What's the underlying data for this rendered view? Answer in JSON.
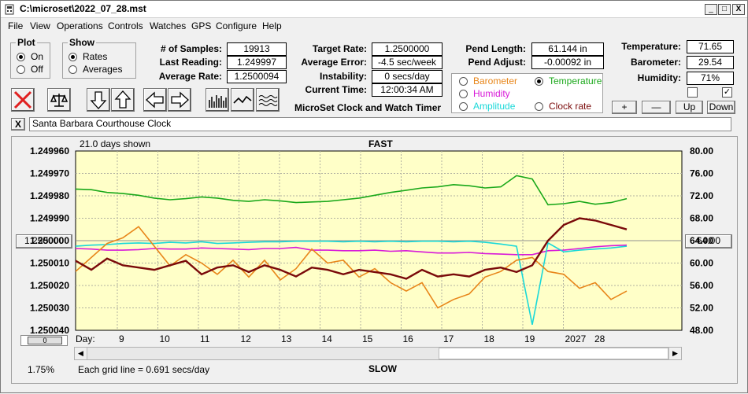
{
  "window": {
    "title": "C:\\microset\\2022_07_28.mst",
    "min_glyph": "_",
    "max_glyph": "□",
    "close_glyph": "X"
  },
  "menu": [
    "File",
    "View",
    "Operations",
    "Controls",
    "Watches",
    "GPS",
    "Configure",
    "Help"
  ],
  "plot_group": {
    "title": "Plot",
    "on": "On",
    "off": "Off"
  },
  "show_group": {
    "title": "Show",
    "rates": "Rates",
    "averages": "Averages"
  },
  "stats": {
    "samples_label": "# of Samples:",
    "samples": "19913",
    "last_label": "Last Reading:",
    "last": "1.249997",
    "avg_label": "Average Rate:",
    "avg": "1.2500094",
    "target_label": "Target Rate:",
    "target": "1.2500000",
    "avgerr_label": "Average Error:",
    "avgerr": "-4.5 sec/week",
    "instab_label": "Instability:",
    "instab": "0 secs/day",
    "time_label": "Current Time:",
    "time": "12:00:34 AM",
    "pendlen_label": "Pend Length:",
    "pendlen": "61.144 in",
    "pendadj_label": "Pend Adjust:",
    "pendadj": "-0.00092 in",
    "temp_label": "Temperature:",
    "temp": "71.65",
    "baro_label": "Barometer:",
    "baro": "29.54",
    "hum_label": "Humidity:",
    "hum": "71%"
  },
  "app_caption": "MicroSet Clock and Watch Timer",
  "sensor_options": {
    "barometer": "Barometer",
    "temperature": "Temperature",
    "humidity": "Humidity",
    "amplitude": "Amplitude",
    "clockrate": "Clock rate"
  },
  "colors": {
    "barometer": "#e8861a",
    "temperature": "#1aa81a",
    "humidity": "#d81ad8",
    "amplitude": "#1ad8d8",
    "clockrate": "#7a0a0a",
    "plotbg": "#ffffc8"
  },
  "adjust_buttons": {
    "plus": "+",
    "minus": "—",
    "up": "Up",
    "down": "Down"
  },
  "watch_name": "Santa Barbara Courthouse Clock",
  "clear_glyph": "X",
  "chart": {
    "days_shown": "21.0 days shown",
    "fast": "FAST",
    "slow": "SLOW",
    "grid_note": "Each grid line = 0.691 secs/day",
    "percent": "1.75%",
    "day_label": "Day:",
    "left_button": "1.250000",
    "right_button": "64.00",
    "slider_label": "0"
  },
  "chart_data": {
    "type": "line",
    "title": "FAST",
    "y_left_ticks": [
      "1.249960",
      "1.249970",
      "1.249980",
      "1.249990",
      "1.250000",
      "1.250010",
      "1.250020",
      "1.250030",
      "1.250040"
    ],
    "y_right_ticks": [
      "80.00",
      "76.00",
      "72.00",
      "68.00",
      "64.00",
      "60.00",
      "56.00",
      "52.00",
      "48.00"
    ],
    "y_left_range": [
      1.24996,
      1.25004
    ],
    "y_right_range": [
      48,
      80
    ],
    "x_ticks": [
      "9",
      "10",
      "11",
      "12",
      "13",
      "14",
      "15",
      "16",
      "17",
      "18",
      "19",
      "20",
      "27",
      "28"
    ],
    "series": [
      {
        "name": "Temperature",
        "color": "#1aa81a",
        "axis": "right",
        "values": [
          73.2,
          73.1,
          72.6,
          72.4,
          72.1,
          71.6,
          71.3,
          71.5,
          71.8,
          71.6,
          71.2,
          71.0,
          71.3,
          71.1,
          70.8,
          70.9,
          71.0,
          71.3,
          71.6,
          72.1,
          72.6,
          73.0,
          73.4,
          73.6,
          74.0,
          73.8,
          73.4,
          73.6,
          75.6,
          75.0,
          70.4,
          70.6,
          71.0,
          70.5,
          70.8,
          71.5
        ]
      },
      {
        "name": "Humidity",
        "color": "#d81ad8",
        "axis": "right",
        "values": [
          62.6,
          62.5,
          62.3,
          62.3,
          62.4,
          62.6,
          62.5,
          62.5,
          62.7,
          62.6,
          62.5,
          62.4,
          62.6,
          62.6,
          62.8,
          62.3,
          62.3,
          62.2,
          62.2,
          62.3,
          62.1,
          62.2,
          62.0,
          61.8,
          61.8,
          61.9,
          61.7,
          61.6,
          61.5,
          61.5,
          62.2,
          62.3,
          62.6,
          62.9,
          63.1,
          63.2
        ]
      },
      {
        "name": "Amplitude",
        "color": "#1ad8d8",
        "axis": "right",
        "values": [
          63.0,
          63.2,
          63.3,
          63.5,
          63.6,
          63.5,
          63.7,
          63.6,
          63.8,
          63.5,
          63.6,
          63.7,
          63.8,
          63.8,
          63.9,
          63.9,
          63.9,
          63.8,
          63.9,
          63.8,
          63.9,
          63.8,
          63.9,
          63.9,
          63.8,
          63.9,
          63.7,
          63.4,
          63.0,
          49.0,
          63.6,
          62.0,
          62.3,
          62.5,
          62.7,
          63.0
        ]
      },
      {
        "name": "Barometer",
        "color": "#e8861a",
        "axis": "right",
        "values": [
          58.5,
          61.0,
          63.5,
          64.5,
          66.5,
          63.0,
          59.5,
          61.5,
          60.0,
          58.0,
          60.5,
          57.5,
          60.5,
          57.0,
          59.0,
          62.5,
          60.0,
          60.5,
          57.5,
          59.0,
          56.5,
          55.0,
          56.5,
          52.0,
          53.5,
          54.5,
          57.5,
          58.5,
          60.5,
          61.0,
          58.5,
          58.0,
          55.5,
          56.5,
          53.5,
          55.0
        ]
      },
      {
        "name": "Clock rate",
        "color": "#7a0a0a",
        "axis": "left",
        "values": [
          1.250009,
          1.250013,
          1.250008,
          1.250011,
          1.250012,
          1.250013,
          1.250011,
          1.250009,
          1.250015,
          1.250012,
          1.250011,
          1.250014,
          1.250011,
          1.250013,
          1.250016,
          1.250012,
          1.250013,
          1.250015,
          1.250013,
          1.250014,
          1.250015,
          1.250017,
          1.250013,
          1.250016,
          1.250015,
          1.250016,
          1.250013,
          1.250012,
          1.250014,
          1.250011,
          1.25,
          1.249993,
          1.24999,
          1.249991,
          1.249993,
          1.249995
        ]
      }
    ]
  }
}
